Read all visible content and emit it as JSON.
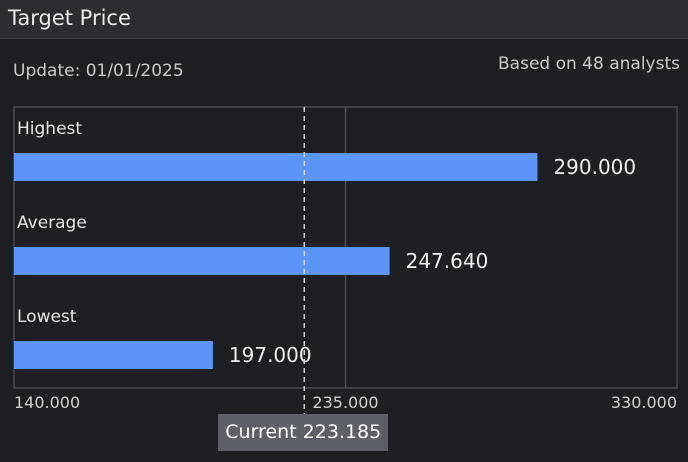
{
  "header": {
    "title": "Target Price"
  },
  "meta": {
    "update_text": "Update: 01/01/2025",
    "basis_text": "Based on 48 analysts"
  },
  "current": {
    "label": "Current 223.185",
    "value": 223.185
  },
  "colors": {
    "bar": "#5b96f7",
    "current_line": "#cfcfcf"
  },
  "chart_data": {
    "type": "bar",
    "orientation": "horizontal",
    "categories": [
      "Highest",
      "Average",
      "Lowest"
    ],
    "values": [
      290.0,
      247.64,
      197.0
    ],
    "value_labels": [
      "290.000",
      "247.640",
      "197.000"
    ],
    "xlim": [
      140,
      330
    ],
    "xticks": [
      140,
      235,
      330
    ],
    "xtick_labels": [
      "140.000",
      "235.000",
      "330.000"
    ],
    "grid": true,
    "reference_line": {
      "value": 223.185,
      "label": "Current 223.185"
    }
  }
}
